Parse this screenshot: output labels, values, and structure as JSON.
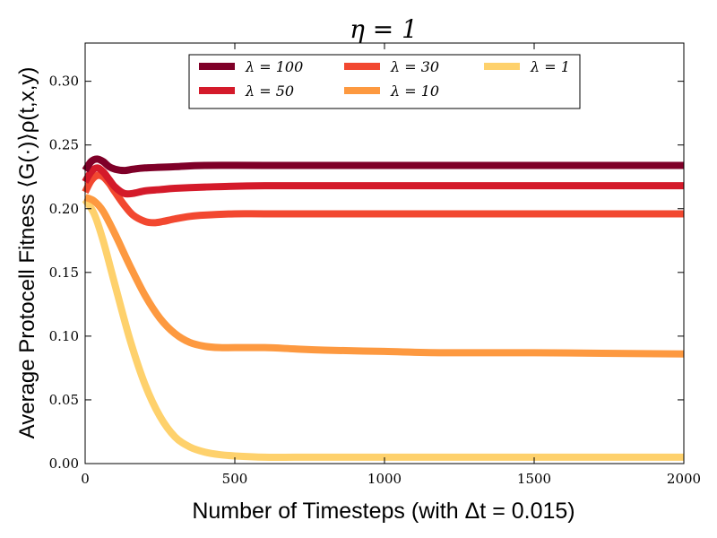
{
  "chart_data": {
    "type": "line",
    "title": "η = 1",
    "xlabel": "Number of Timesteps (with Δt = 0.015)",
    "ylabel": "Average Protocell Fitness ⟨G(·)⟩ρ(t,x,y)",
    "xlim": [
      0,
      2000
    ],
    "ylim": [
      0,
      0.33
    ],
    "xticks": [
      "0",
      "500",
      "1000",
      "1500",
      "2000"
    ],
    "yticks": [
      "0.00",
      "0.05",
      "0.10",
      "0.15",
      "0.20",
      "0.25",
      "0.30"
    ],
    "legend_position": "top-center",
    "grid": false,
    "series": [
      {
        "name": "λ = 100",
        "color": "#7f0028",
        "x": [
          0,
          20,
          40,
          60,
          80,
          100,
          130,
          160,
          200,
          300,
          400,
          600,
          1000,
          1500,
          2000
        ],
        "y": [
          0.23,
          0.237,
          0.239,
          0.237,
          0.233,
          0.231,
          0.23,
          0.231,
          0.232,
          0.233,
          0.234,
          0.234,
          0.234,
          0.234,
          0.234
        ]
      },
      {
        "name": "λ = 50",
        "color": "#d41a2a",
        "x": [
          0,
          20,
          40,
          60,
          80,
          100,
          130,
          160,
          200,
          250,
          300,
          400,
          600,
          1000,
          1500,
          2000
        ],
        "y": [
          0.221,
          0.229,
          0.232,
          0.229,
          0.223,
          0.217,
          0.212,
          0.212,
          0.214,
          0.215,
          0.216,
          0.217,
          0.218,
          0.218,
          0.218,
          0.218
        ]
      },
      {
        "name": "λ = 30",
        "color": "#f24830",
        "x": [
          0,
          20,
          40,
          60,
          80,
          100,
          130,
          160,
          200,
          230,
          260,
          300,
          350,
          400,
          500,
          600,
          800,
          1000,
          1500,
          2000
        ],
        "y": [
          0.213,
          0.222,
          0.226,
          0.225,
          0.22,
          0.213,
          0.203,
          0.195,
          0.19,
          0.189,
          0.19,
          0.192,
          0.194,
          0.195,
          0.196,
          0.196,
          0.196,
          0.196,
          0.196,
          0.196
        ]
      },
      {
        "name": "λ = 10",
        "color": "#fd9940",
        "x": [
          0,
          30,
          60,
          100,
          150,
          200,
          250,
          300,
          350,
          400,
          450,
          500,
          600,
          700,
          800,
          1000,
          1200,
          1500,
          2000
        ],
        "y": [
          0.209,
          0.206,
          0.198,
          0.18,
          0.155,
          0.132,
          0.114,
          0.102,
          0.095,
          0.092,
          0.091,
          0.091,
          0.091,
          0.09,
          0.089,
          0.088,
          0.087,
          0.087,
          0.086
        ]
      },
      {
        "name": "λ = 1",
        "color": "#fed16c",
        "x": [
          0,
          30,
          60,
          100,
          150,
          200,
          250,
          300,
          350,
          400,
          450,
          500,
          600,
          700,
          800,
          1000,
          1500,
          2000
        ],
        "y": [
          0.207,
          0.196,
          0.175,
          0.14,
          0.097,
          0.062,
          0.037,
          0.021,
          0.013,
          0.009,
          0.007,
          0.006,
          0.005,
          0.005,
          0.005,
          0.005,
          0.005,
          0.005
        ]
      }
    ]
  }
}
